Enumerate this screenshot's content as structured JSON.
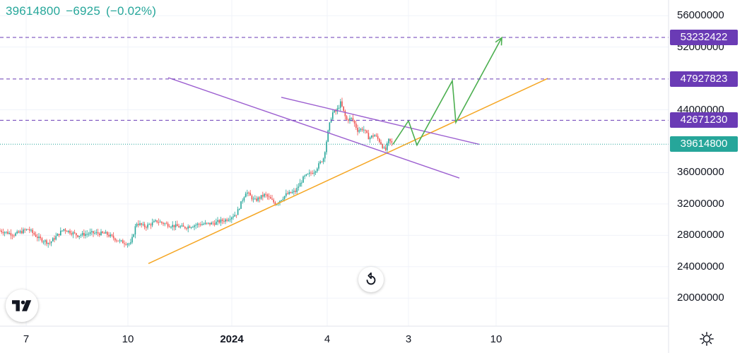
{
  "header": {
    "last_price": "39614800",
    "change": "−6925",
    "change_pct": "(−0.02%)"
  },
  "colors": {
    "up": "#26a69a",
    "down": "#ef5350",
    "channel": "#9c5fd0",
    "support": "#f5a623",
    "projection": "#4caf50",
    "level_label": "#6a3bb5",
    "current_label": "#26a69a"
  },
  "chart_data": {
    "type": "candlestick",
    "y_ticks": [
      "56000000",
      "52000000",
      "44000000",
      "36000000",
      "32000000",
      "28000000",
      "24000000",
      "20000000"
    ],
    "x_ticks": [
      "7",
      "10",
      "2024",
      "4",
      "3",
      "10"
    ],
    "ylim": [
      16600000,
      58000000
    ],
    "price_levels": [
      {
        "label": "53232422",
        "value": 53232422
      },
      {
        "label": "47927823",
        "value": 47927823
      },
      {
        "label": "42671230",
        "value": 42671230
      },
      {
        "label": "39614800",
        "value": 39614800
      }
    ],
    "close_path": [
      [
        0,
        28600000
      ],
      [
        20,
        28100000
      ],
      [
        40,
        28800000
      ],
      [
        55,
        27600000
      ],
      [
        70,
        27000000
      ],
      [
        90,
        28800000
      ],
      [
        110,
        28000000
      ],
      [
        130,
        28300000
      ],
      [
        150,
        28200000
      ],
      [
        170,
        27200000
      ],
      [
        185,
        26900000
      ],
      [
        193,
        29600000
      ],
      [
        205,
        29100000
      ],
      [
        222,
        29800000
      ],
      [
        240,
        29300000
      ],
      [
        260,
        29000000
      ],
      [
        280,
        29400000
      ],
      [
        300,
        29500000
      ],
      [
        320,
        30000000
      ],
      [
        335,
        30800000
      ],
      [
        348,
        33600000
      ],
      [
        360,
        32400000
      ],
      [
        375,
        33200000
      ],
      [
        390,
        32000000
      ],
      [
        405,
        33200000
      ],
      [
        418,
        33600000
      ],
      [
        430,
        35400000
      ],
      [
        445,
        36200000
      ],
      [
        458,
        37900000
      ],
      [
        465,
        41600000
      ],
      [
        470,
        43600000
      ],
      [
        476,
        43800000
      ],
      [
        482,
        44900000
      ],
      [
        490,
        42700000
      ],
      [
        498,
        42900000
      ],
      [
        506,
        41400000
      ],
      [
        514,
        41600000
      ],
      [
        522,
        40400000
      ],
      [
        530,
        40800000
      ],
      [
        538,
        39900000
      ],
      [
        545,
        38700000
      ],
      [
        550,
        40100000
      ],
      [
        556,
        39600000
      ]
    ],
    "channel_upper": [
      [
        398,
        45600000
      ],
      [
        678,
        39600000
      ]
    ],
    "channel_lower": [
      [
        238,
        48100000
      ],
      [
        650,
        35300000
      ]
    ],
    "support_line": [
      [
        210,
        24400000
      ],
      [
        775,
        48000000
      ]
    ],
    "projection_path": [
      [
        556,
        39600000
      ],
      [
        578,
        42600000
      ],
      [
        590,
        39500000
      ],
      [
        640,
        47700000
      ],
      [
        645,
        42400000
      ],
      [
        710,
        53200000
      ]
    ]
  }
}
